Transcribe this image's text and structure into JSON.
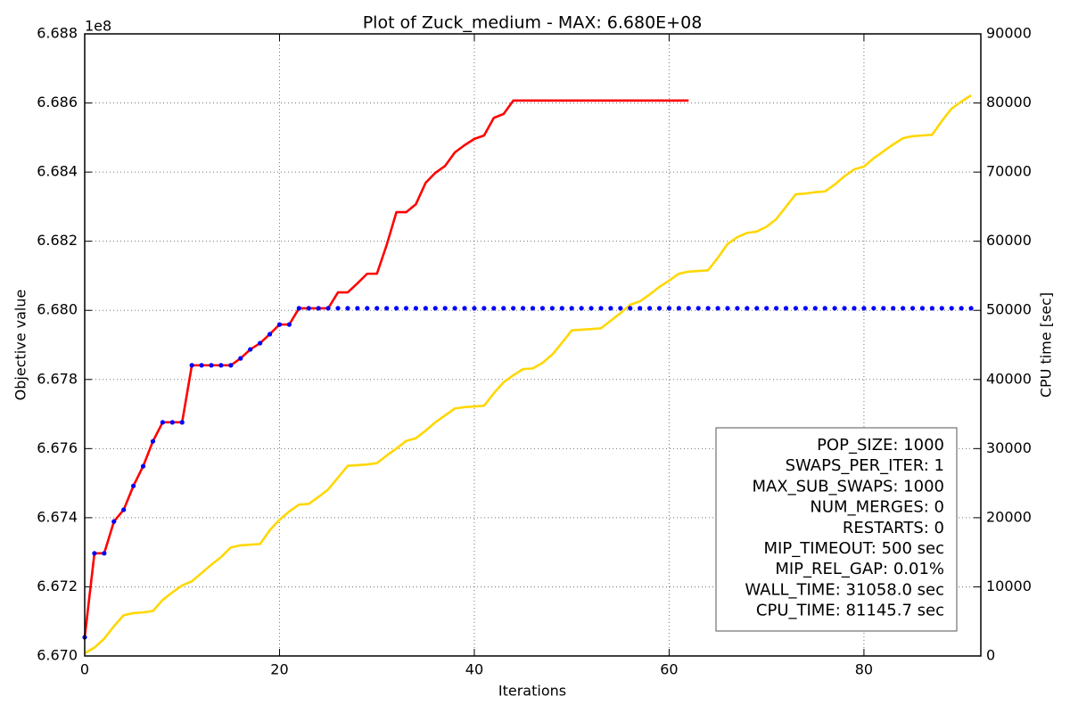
{
  "chart_data": {
    "type": "line",
    "title": "Plot of Zuck_medium - MAX: 6.680E+08",
    "xlabel": "Iterations",
    "ylabel": "Objective value",
    "y2label": "CPU time [sec]",
    "y_offset_label": "1e8",
    "x": [
      0,
      1,
      2,
      3,
      4,
      5,
      6,
      7,
      8,
      9,
      10,
      11,
      12,
      13,
      14,
      15,
      16,
      17,
      18,
      19,
      20,
      21,
      22,
      23,
      24,
      25,
      26,
      27,
      28,
      29,
      30,
      31,
      32,
      33,
      34,
      35,
      36,
      37,
      38,
      39,
      40,
      41,
      42,
      43,
      44,
      45,
      46,
      47,
      48,
      49,
      50,
      51,
      52,
      53,
      54,
      55,
      56,
      57,
      58,
      59,
      60,
      61,
      62,
      63,
      64,
      65,
      66,
      67,
      68,
      69,
      70,
      71,
      72,
      73,
      74,
      75,
      76,
      77,
      78,
      79,
      80,
      81,
      82,
      83,
      84,
      85,
      86,
      87,
      88,
      89,
      90,
      91
    ],
    "xlim": [
      0,
      92
    ],
    "xticks": [
      0,
      20,
      40,
      60,
      80
    ],
    "ylim": [
      6.67,
      6.688
    ],
    "yticks": [
      {
        "value": 6.67,
        "label": "6.670"
      },
      {
        "value": 6.672,
        "label": "6.672"
      },
      {
        "value": 6.674,
        "label": "6.674"
      },
      {
        "value": 6.676,
        "label": "6.676"
      },
      {
        "value": 6.678,
        "label": "6.678"
      },
      {
        "value": 6.68,
        "label": "6.680"
      },
      {
        "value": 6.682,
        "label": "6.682"
      },
      {
        "value": 6.684,
        "label": "6.684"
      },
      {
        "value": 6.686,
        "label": "6.686"
      },
      {
        "value": 6.688,
        "label": "6.688"
      }
    ],
    "y2lim": [
      0,
      90000
    ],
    "y2ticks": [
      0,
      10000,
      20000,
      30000,
      40000,
      50000,
      60000,
      70000,
      80000,
      90000
    ],
    "grid": true,
    "series": [
      {
        "color": "#ffd700",
        "axis": "y2",
        "style": "line",
        "values": [
          400,
          1200,
          2500,
          4300,
          5900,
          6200,
          6300,
          6500,
          8100,
          9200,
          10200,
          10800,
          12000,
          13200,
          14300,
          15700,
          16000,
          16100,
          16200,
          18200,
          19700,
          20900,
          21900,
          22000,
          23000,
          24100,
          25800,
          27500,
          27600,
          27700,
          27900,
          29000,
          30000,
          31100,
          31500,
          32600,
          33800,
          34800,
          35800,
          36000,
          36100,
          36200,
          38000,
          39600,
          40600,
          41500,
          41600,
          42400,
          43600,
          45300,
          47100,
          47200,
          47300,
          47400,
          48500,
          49600,
          50800,
          51300,
          52300,
          53400,
          54300,
          55300,
          55600,
          55700,
          55800,
          57600,
          59600,
          60600,
          61200,
          61400,
          62100,
          63200,
          65000,
          66800,
          66900,
          67100,
          67200,
          68200,
          69400,
          70400,
          70800,
          72000,
          73000,
          74000,
          74900,
          75200,
          75300,
          75400,
          77400,
          79200,
          80200,
          81100
        ]
      },
      {
        "color": "#ff0000",
        "style": "line",
        "values": [
          6.67054,
          6.67297,
          6.67297,
          6.67389,
          6.67423,
          6.67492,
          6.67549,
          6.67621,
          6.67676,
          6.67676,
          6.67676,
          6.67841,
          6.67841,
          6.67841,
          6.67841,
          6.67841,
          6.67861,
          6.67887,
          6.67905,
          6.67931,
          6.67959,
          6.67959,
          6.68006,
          6.68006,
          6.68006,
          6.68006,
          6.68052,
          6.68052,
          6.68078,
          6.68106,
          6.68106,
          6.68189,
          6.68284,
          6.68284,
          6.68307,
          6.68369,
          6.68398,
          6.68418,
          6.68457,
          6.68478,
          6.68496,
          6.68506,
          6.68557,
          6.68568,
          6.68607,
          6.68607,
          6.68607,
          6.68607,
          6.68607,
          6.68607,
          6.68607,
          6.68607,
          6.68607,
          6.68607,
          6.68607,
          6.68607,
          6.68607,
          6.68607,
          6.68607,
          6.68607,
          6.68607,
          6.68607,
          6.68607,
          null,
          null,
          null,
          null,
          null,
          null,
          null,
          null,
          null,
          null,
          null,
          null,
          null,
          null,
          null,
          null,
          null,
          null,
          null,
          null,
          null,
          null,
          null,
          null,
          null,
          null,
          null,
          null,
          null
        ]
      },
      {
        "color": "#0000ff",
        "style": "dots",
        "values": [
          6.67054,
          6.67297,
          6.67297,
          6.67389,
          6.67423,
          6.67492,
          6.67549,
          6.67621,
          6.67676,
          6.67676,
          6.67676,
          6.67841,
          6.67841,
          6.67841,
          6.67841,
          6.67841,
          6.67861,
          6.67887,
          6.67905,
          6.67931,
          6.67959,
          6.67959,
          6.68006,
          6.68006,
          6.68006,
          6.68006,
          6.68006,
          6.68006,
          6.68006,
          6.68006,
          6.68006,
          6.68006,
          6.68006,
          6.68006,
          6.68006,
          6.68006,
          6.68006,
          6.68006,
          6.68006,
          6.68006,
          6.68006,
          6.68006,
          6.68006,
          6.68006,
          6.68006,
          6.68006,
          6.68006,
          6.68006,
          6.68006,
          6.68006,
          6.68006,
          6.68006,
          6.68006,
          6.68006,
          6.68006,
          6.68006,
          6.68006,
          6.68006,
          6.68006,
          6.68006,
          6.68006,
          6.68006,
          6.68006,
          6.68006,
          6.68006,
          6.68006,
          6.68006,
          6.68006,
          6.68006,
          6.68006,
          6.68006,
          6.68006,
          6.68006,
          6.68006,
          6.68006,
          6.68006,
          6.68006,
          6.68006,
          6.68006,
          6.68006,
          6.68006,
          6.68006,
          6.68006,
          6.68006,
          6.68006,
          6.68006,
          6.68006,
          6.68006,
          6.68006,
          6.68006,
          6.68006,
          6.68006
        ]
      }
    ],
    "textbox": [
      "POP_SIZE: 1000",
      "SWAPS_PER_ITER: 1",
      "MAX_SUB_SWAPS: 1000",
      "NUM_MERGES: 0",
      "RESTARTS: 0",
      "MIP_TIMEOUT: 500 sec",
      "MIP_REL_GAP: 0.01%",
      "WALL_TIME: 31058.0 sec",
      "CPU_TIME: 81145.7 sec"
    ]
  }
}
